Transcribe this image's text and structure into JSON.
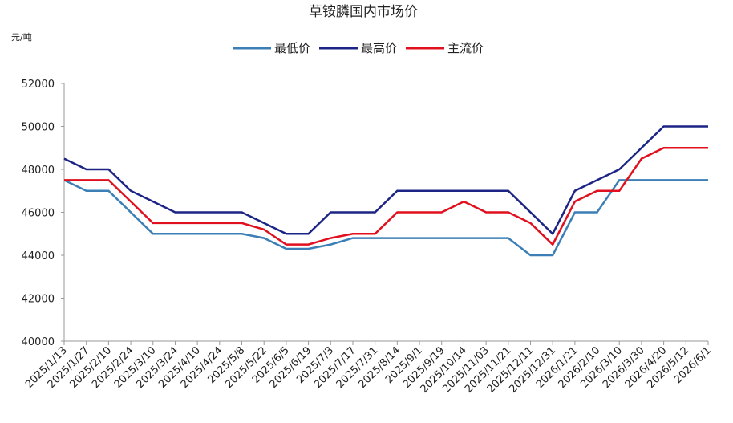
{
  "chart_data": {
    "type": "line",
    "title": "草铵膦国内市场价",
    "y_axis_label": "元/吨",
    "categories": [
      "2025/1/13",
      "2025/1/27",
      "2025/2/10",
      "2025/2/24",
      "2025/3/10",
      "2025/3/24",
      "2025/4/10",
      "2025/4/24",
      "2025/5/8",
      "2025/5/22",
      "2025/6/5",
      "2025/6/19",
      "2025/7/3",
      "2025/7/17",
      "2025/7/31",
      "2025/8/14",
      "2025/9/1",
      "2025/9/19",
      "2025/10/14",
      "2025/11/03",
      "2025/11/21",
      "2025/12/11",
      "2025/12/31",
      "2026/1/21",
      "2026/2/10",
      "2026/3/10",
      "2026/3/30",
      "2026/4/20",
      "2026/5/12",
      "2026/6/1"
    ],
    "series": [
      {
        "name": "最低价",
        "color": "#3b7fb6",
        "values": [
          47500,
          47000,
          47000,
          46000,
          45000,
          45000,
          45000,
          45000,
          45000,
          44800,
          44300,
          44300,
          44500,
          44800,
          44800,
          44800,
          44800,
          44800,
          44800,
          44800,
          44800,
          44000,
          44000,
          46000,
          46000,
          47500,
          47500,
          47500,
          47500,
          47500
        ]
      },
      {
        "name": "最高价",
        "color": "#1c2585",
        "values": [
          48500,
          48000,
          48000,
          47000,
          46500,
          46000,
          46000,
          46000,
          46000,
          45500,
          45000,
          45000,
          46000,
          46000,
          46000,
          47000,
          47000,
          47000,
          47000,
          47000,
          47000,
          46000,
          45000,
          47000,
          47500,
          48000,
          49000,
          50000,
          50000,
          50000
        ]
      },
      {
        "name": "主流价",
        "color": "#e0101e",
        "values": [
          47500,
          47500,
          47500,
          46500,
          45500,
          45500,
          45500,
          45500,
          45500,
          45200,
          44500,
          44500,
          44800,
          45000,
          45000,
          46000,
          46000,
          46000,
          46500,
          46000,
          46000,
          45500,
          44500,
          46500,
          47000,
          47000,
          48500,
          49000,
          49000,
          49000
        ]
      }
    ],
    "ylim": [
      40000,
      52000
    ],
    "yticks": [
      40000,
      42000,
      44000,
      46000,
      48000,
      50000,
      52000
    ],
    "grid": false
  }
}
